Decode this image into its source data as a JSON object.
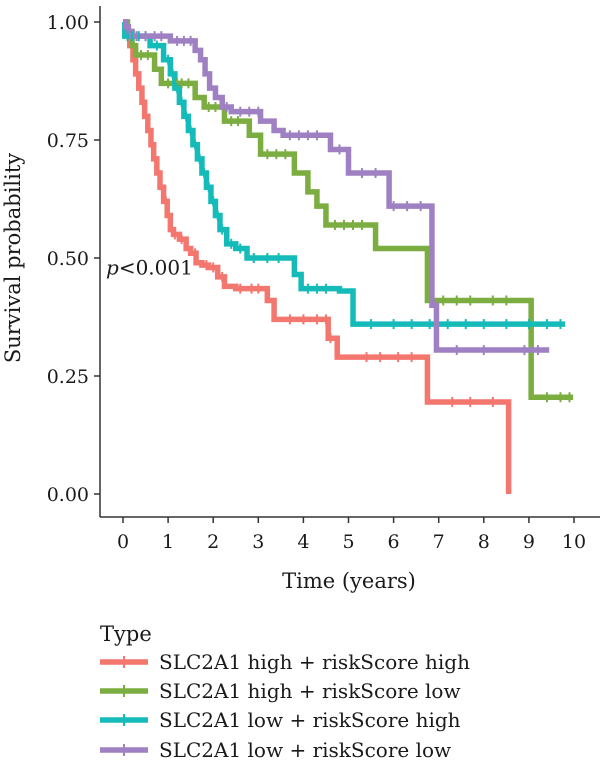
{
  "chart_data": {
    "type": "line",
    "title": "",
    "xlabel": "Time (years)",
    "ylabel": "Survival probability",
    "xlim": [
      0,
      10
    ],
    "ylim": [
      0,
      1
    ],
    "x_ticks": [
      {
        "value": 0,
        "label": "0"
      },
      {
        "value": 1,
        "label": "1"
      },
      {
        "value": 2,
        "label": "2"
      },
      {
        "value": 3,
        "label": "3"
      },
      {
        "value": 4,
        "label": "4"
      },
      {
        "value": 5,
        "label": "5"
      },
      {
        "value": 6,
        "label": "6"
      },
      {
        "value": 7,
        "label": "7"
      },
      {
        "value": 8,
        "label": "8"
      },
      {
        "value": 9,
        "label": "9"
      },
      {
        "value": 10,
        "label": "10"
      }
    ],
    "y_ticks": [
      {
        "value": 0,
        "label": "0.00"
      },
      {
        "value": 0.25,
        "label": "0.25"
      },
      {
        "value": 0.5,
        "label": "0.50"
      },
      {
        "value": 0.75,
        "label": "0.75"
      },
      {
        "value": 1,
        "label": "1.00"
      }
    ],
    "grid": false,
    "annotation": {
      "p_italic": "p",
      "text": "<0.001",
      "x": 0,
      "y": 0.48
    },
    "legend": {
      "title": "Type",
      "position": "bottom"
    },
    "series": [
      {
        "name": "SLC2A1 high + riskScore high",
        "color": "#f3776e",
        "steps": [
          [
            0,
            1
          ],
          [
            0.08,
            0.98
          ],
          [
            0.15,
            0.95
          ],
          [
            0.22,
            0.92
          ],
          [
            0.28,
            0.89
          ],
          [
            0.35,
            0.86
          ],
          [
            0.42,
            0.83
          ],
          [
            0.48,
            0.8
          ],
          [
            0.55,
            0.77
          ],
          [
            0.62,
            0.74
          ],
          [
            0.68,
            0.71
          ],
          [
            0.75,
            0.68
          ],
          [
            0.82,
            0.65
          ],
          [
            0.9,
            0.62
          ],
          [
            0.98,
            0.59
          ],
          [
            1.05,
            0.56
          ],
          [
            1.12,
            0.55
          ],
          [
            1.25,
            0.54
          ],
          [
            1.4,
            0.52
          ],
          [
            1.5,
            0.51
          ],
          [
            1.62,
            0.49
          ],
          [
            1.75,
            0.485
          ],
          [
            1.9,
            0.48
          ],
          [
            2.1,
            0.46
          ],
          [
            2.25,
            0.44
          ],
          [
            2.5,
            0.435
          ],
          [
            3.2,
            0.41
          ],
          [
            3.35,
            0.37
          ],
          [
            4.55,
            0.33
          ],
          [
            4.75,
            0.29
          ],
          [
            6.75,
            0.195
          ],
          [
            8.55,
            0.0
          ]
        ],
        "end_x": 8.55,
        "censors": [
          0.95,
          1.15,
          1.3,
          1.6,
          1.85,
          2.0,
          2.2,
          2.6,
          2.85,
          3.0,
          3.7,
          4.0,
          4.3,
          4.5,
          4.6,
          5.4,
          5.7,
          6.1,
          6.4,
          7.3,
          7.7,
          8.2
        ]
      },
      {
        "name": "SLC2A1 high + riskScore low",
        "color": "#7bad41",
        "steps": [
          [
            0,
            1
          ],
          [
            0.1,
            0.98
          ],
          [
            0.2,
            0.95
          ],
          [
            0.28,
            0.93
          ],
          [
            0.7,
            0.9
          ],
          [
            0.85,
            0.87
          ],
          [
            1.6,
            0.84
          ],
          [
            1.8,
            0.82
          ],
          [
            2.25,
            0.79
          ],
          [
            2.8,
            0.76
          ],
          [
            3.05,
            0.72
          ],
          [
            3.8,
            0.68
          ],
          [
            4.1,
            0.64
          ],
          [
            4.3,
            0.61
          ],
          [
            4.5,
            0.57
          ],
          [
            5.6,
            0.52
          ],
          [
            6.75,
            0.41
          ],
          [
            9.05,
            0.205
          ]
        ],
        "end_x": 9.98,
        "censors": [
          0.4,
          0.55,
          1.0,
          1.2,
          1.3,
          1.45,
          1.9,
          2.05,
          2.4,
          2.55,
          3.2,
          3.4,
          3.6,
          4.7,
          4.9,
          5.1,
          5.3,
          7.1,
          7.4,
          7.7,
          8.2,
          8.5,
          9.4,
          9.7,
          9.9
        ]
      },
      {
        "name": "SLC2A1 low + riskScore high",
        "color": "#15bbb8",
        "steps": [
          [
            0,
            1
          ],
          [
            0.04,
            0.97
          ],
          [
            0.6,
            0.95
          ],
          [
            0.9,
            0.92
          ],
          [
            1.05,
            0.89
          ],
          [
            1.15,
            0.86
          ],
          [
            1.25,
            0.83
          ],
          [
            1.35,
            0.8
          ],
          [
            1.45,
            0.77
          ],
          [
            1.55,
            0.74
          ],
          [
            1.65,
            0.71
          ],
          [
            1.75,
            0.68
          ],
          [
            1.85,
            0.65
          ],
          [
            1.95,
            0.62
          ],
          [
            2.05,
            0.59
          ],
          [
            2.15,
            0.56
          ],
          [
            2.3,
            0.53
          ],
          [
            2.5,
            0.52
          ],
          [
            2.75,
            0.5
          ],
          [
            3.8,
            0.465
          ],
          [
            3.95,
            0.435
          ],
          [
            4.8,
            0.43
          ],
          [
            5.1,
            0.36
          ]
        ],
        "end_x": 9.8,
        "censors": [
          0.1,
          0.2,
          0.35,
          0.5,
          0.75,
          1.0,
          1.1,
          1.2,
          1.3,
          1.4,
          1.5,
          1.6,
          1.7,
          1.8,
          1.9,
          2.0,
          2.1,
          2.2,
          2.4,
          2.6,
          2.9,
          3.2,
          3.45,
          4.1,
          4.3,
          4.5,
          5.5,
          6.0,
          6.4,
          6.8,
          7.2,
          7.6,
          8.0,
          8.5,
          9.0,
          9.4,
          9.7
        ]
      },
      {
        "name": "SLC2A1 low + riskScore low",
        "color": "#9e80c3",
        "steps": [
          [
            0,
            1
          ],
          [
            0.06,
            0.99
          ],
          [
            0.12,
            0.98
          ],
          [
            0.2,
            0.97
          ],
          [
            1.05,
            0.96
          ],
          [
            1.6,
            0.94
          ],
          [
            1.72,
            0.92
          ],
          [
            1.82,
            0.89
          ],
          [
            1.92,
            0.86
          ],
          [
            2.05,
            0.84
          ],
          [
            2.2,
            0.82
          ],
          [
            2.4,
            0.81
          ],
          [
            3.05,
            0.79
          ],
          [
            3.35,
            0.77
          ],
          [
            3.55,
            0.76
          ],
          [
            4.6,
            0.73
          ],
          [
            5.0,
            0.68
          ],
          [
            5.9,
            0.61
          ],
          [
            6.85,
            0.4
          ],
          [
            6.95,
            0.305
          ]
        ],
        "end_x": 9.45,
        "censors": [
          0.3,
          0.5,
          0.7,
          0.85,
          1.2,
          1.35,
          1.5,
          2.3,
          2.6,
          2.8,
          3.0,
          3.7,
          3.9,
          4.1,
          4.3,
          4.8,
          5.3,
          5.6,
          6.0,
          6.3,
          6.6,
          7.4,
          8.0,
          8.9,
          9.2
        ]
      }
    ]
  }
}
